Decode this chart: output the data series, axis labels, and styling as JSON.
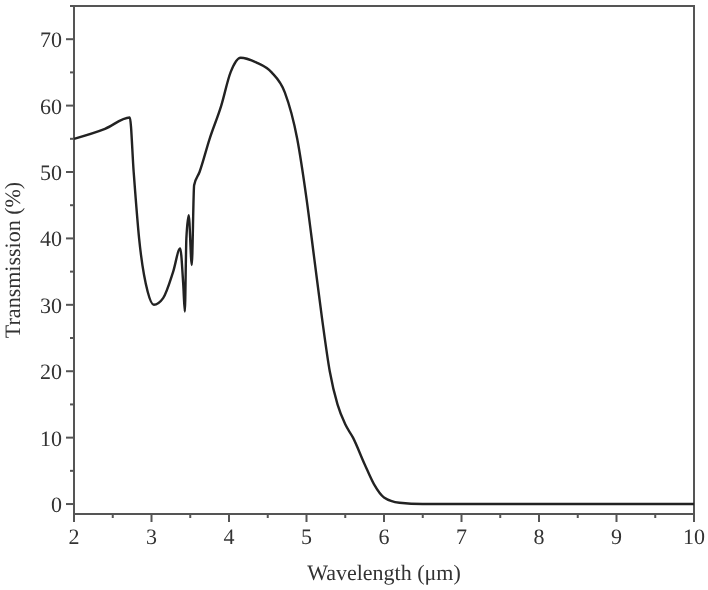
{
  "chart_data": {
    "type": "line",
    "xlabel": "Wavelength (μm)",
    "ylabel": "Transmission (%)",
    "xlim": [
      2,
      10
    ],
    "ylim": [
      -1.5,
      75
    ],
    "xticks": [
      2,
      3,
      4,
      5,
      6,
      7,
      8,
      9,
      10
    ],
    "yticks": [
      0,
      10,
      20,
      30,
      40,
      50,
      60,
      70
    ],
    "grid": false,
    "marker": "none",
    "line_style": "solid",
    "series": [
      {
        "color": "#222222",
        "x": [
          2,
          2.4,
          2.72,
          2.77,
          2.84,
          2.95,
          3.03,
          3.15,
          3.28,
          3.37,
          3.41,
          3.43,
          3.45,
          3.48,
          3.52,
          3.55,
          3.62,
          3.75,
          3.9,
          4.02,
          4.15,
          4.35,
          4.55,
          4.72,
          4.88,
          5.0,
          5.1,
          5.2,
          5.3,
          5.4,
          5.5,
          5.6,
          5.75,
          5.87,
          6.0,
          6.2,
          6.5,
          10
        ],
        "values": [
          55,
          56.5,
          58.2,
          50,
          40,
          32,
          30,
          31,
          35,
          38.5,
          33,
          29,
          40,
          43.5,
          36,
          48,
          50,
          55,
          60,
          65,
          67.2,
          66.5,
          65,
          62,
          55,
          46,
          37,
          28,
          20,
          15,
          12,
          10,
          6,
          3,
          1,
          0.2,
          0,
          0
        ]
      }
    ]
  }
}
